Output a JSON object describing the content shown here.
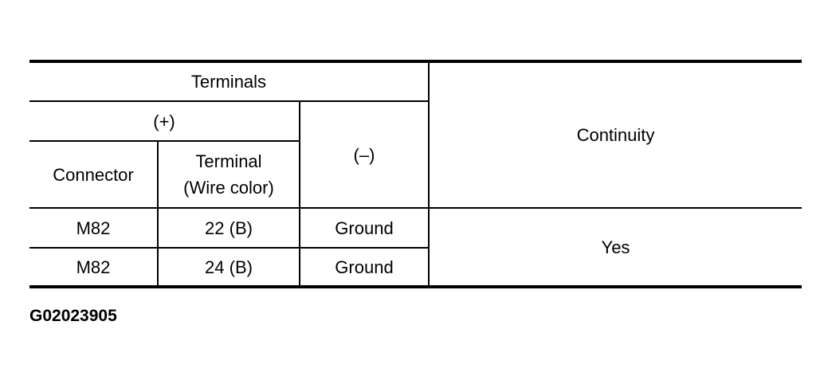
{
  "table": {
    "header": {
      "terminals": "Terminals",
      "plus": "(+)",
      "minus": "(–)",
      "connector": "Connector",
      "terminal_line1": "Terminal",
      "terminal_line2": "(Wire color)",
      "continuity": "Continuity"
    },
    "rows": [
      {
        "connector": "M82",
        "terminal": "22 (B)",
        "minus": "Ground"
      },
      {
        "connector": "M82",
        "terminal": "24 (B)",
        "minus": "Ground"
      }
    ],
    "continuity_value": "Yes"
  },
  "figure_code": "G02023905"
}
